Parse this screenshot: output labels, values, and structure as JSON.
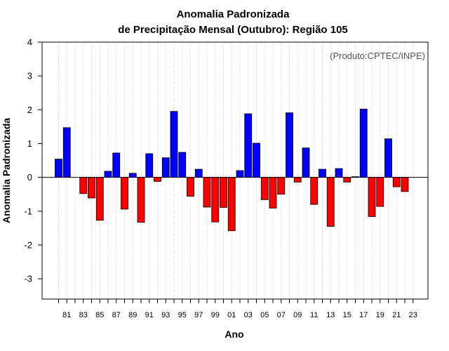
{
  "chart_data": {
    "type": "bar",
    "title": "Anomalia Padronizada",
    "subtitle": "de Precipitação Mensal (Outubro): Região 105",
    "xlabel": "Ano",
    "ylabel": "Anomalia Padronizada",
    "annotation": "(Produto:CPTEC/INPE)",
    "ylim": [
      -3.6,
      4
    ],
    "yticks": [
      -3,
      -2,
      -1,
      0,
      1,
      2,
      3,
      4
    ],
    "grid": true,
    "colors": {
      "positive": "#0000ff",
      "negative": "#ff0000",
      "grid": "#d9d9d9"
    },
    "categories": [
      "1980",
      "1981",
      "1982",
      "1983",
      "1984",
      "1985",
      "1986",
      "1987",
      "1988",
      "1989",
      "1990",
      "1991",
      "1992",
      "1993",
      "1994",
      "1995",
      "1996",
      "1997",
      "1998",
      "1999",
      "2000",
      "2001",
      "2002",
      "2003",
      "2004",
      "2005",
      "2006",
      "2007",
      "2008",
      "2009",
      "2010",
      "2011",
      "2012",
      "2013",
      "2014",
      "2015",
      "2016",
      "2017",
      "2018",
      "2019",
      "2020",
      "2021",
      "2022",
      "2023"
    ],
    "values": [
      0.54,
      1.47,
      0.0,
      -0.48,
      -0.61,
      -1.27,
      0.18,
      0.72,
      -0.94,
      0.12,
      -1.33,
      0.7,
      -0.12,
      0.58,
      1.95,
      0.74,
      -0.56,
      0.24,
      -0.88,
      -1.32,
      -0.89,
      -1.58,
      0.2,
      1.88,
      1.01,
      -0.66,
      -0.91,
      -0.5,
      1.91,
      -0.14,
      0.87,
      -0.8,
      0.24,
      -1.45,
      0.26,
      -0.14,
      0.02,
      2.02,
      -1.16,
      -0.86,
      1.14,
      -0.28,
      -0.42,
      0.0
    ],
    "x_tick_labels": [
      "81",
      "83",
      "85",
      "87",
      "89",
      "91",
      "93",
      "95",
      "97",
      "99",
      "01",
      "03",
      "05",
      "07",
      "09",
      "11",
      "13",
      "15",
      "17",
      "19",
      "21",
      "23"
    ]
  }
}
